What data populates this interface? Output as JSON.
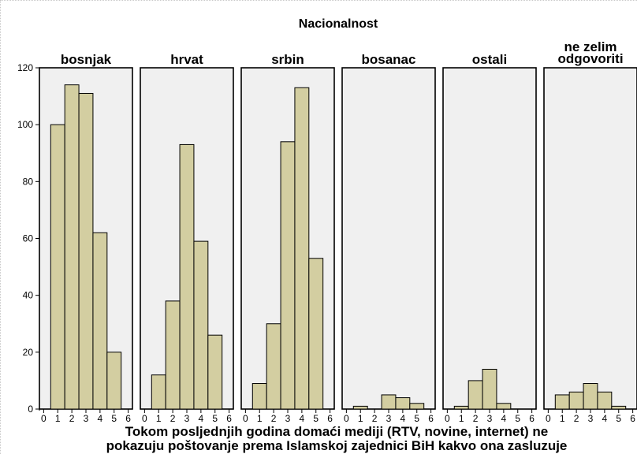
{
  "chart_data": {
    "type": "bar",
    "title": "Nacionalnost",
    "xlabel": [
      "Tokom posljednjih godina domaći mediji (RTV, novine, internet) ne",
      "pokazuju poštovanje prema Islamskoj zajednici BiH kakvo ona zasluzuje"
    ],
    "ylabel": "",
    "ylim": [
      0,
      120
    ],
    "yticks": [
      0,
      20,
      40,
      60,
      80,
      100,
      120
    ],
    "xticks": [
      0,
      1,
      2,
      3,
      4,
      5,
      6
    ],
    "bar_width": 1,
    "panels": [
      {
        "name": [
          "bosnjak"
        ],
        "x": [
          1,
          2,
          3,
          4,
          5
        ],
        "values": [
          100,
          114,
          111,
          62,
          20
        ]
      },
      {
        "name": [
          "hrvat"
        ],
        "x": [
          1,
          2,
          3,
          4,
          5
        ],
        "values": [
          12,
          38,
          93,
          59,
          26
        ]
      },
      {
        "name": [
          "srbin"
        ],
        "x": [
          1,
          2,
          3,
          4,
          5
        ],
        "values": [
          9,
          30,
          94,
          113,
          53
        ]
      },
      {
        "name": [
          "bosanac"
        ],
        "x": [
          1,
          3,
          4,
          5
        ],
        "values": [
          1,
          5,
          4,
          2
        ]
      },
      {
        "name": [
          "ostali"
        ],
        "x": [
          1,
          2,
          3,
          4
        ],
        "values": [
          1,
          10,
          14,
          2
        ]
      },
      {
        "name": [
          "ne zelim",
          "odgovoriti"
        ],
        "x": [
          1,
          2,
          3,
          4,
          5
        ],
        "values": [
          5,
          6,
          9,
          6,
          1
        ]
      }
    ],
    "colors": {
      "bar": "#d3cea1",
      "panel_background": "#f0f0f0"
    },
    "grid": false
  }
}
